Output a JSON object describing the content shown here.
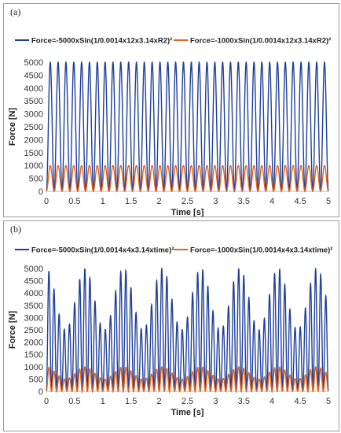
{
  "chart_data": [
    {
      "type": "line",
      "panel_label": "(a)",
      "xlabel": "Time [s]",
      "ylabel": "Force [N]",
      "xlim": [
        0,
        5
      ],
      "ylim": [
        0,
        5000
      ],
      "xticks": [
        "0",
        "0.5",
        "1",
        "1.5",
        "2",
        "2.5",
        "3",
        "3.5",
        "4",
        "4.5",
        "5"
      ],
      "yticks": [
        "0",
        "500",
        "1000",
        "1500",
        "2000",
        "2500",
        "3000",
        "3500",
        "4000",
        "4500",
        "5000"
      ],
      "grid": false,
      "legend_position": "top",
      "series": [
        {
          "name": "Force=-5000xSin(1/0.0014x12x3.14xR2)²",
          "color": "#1f3f99",
          "amplitude": 5000,
          "cycles": 36,
          "min_mod": 0.0
        },
        {
          "name": "Force=-1000xSin(1/0.0014x12x3.14xR2)²",
          "color": "#e0651f",
          "amplitude": 1000,
          "cycles": 36,
          "min_mod": 0.0
        }
      ]
    },
    {
      "type": "line",
      "panel_label": "(b)",
      "xlabel": "Time [s]",
      "ylabel": "Force [N]",
      "xlim": [
        0,
        5
      ],
      "ylim": [
        0,
        5000
      ],
      "xticks": [
        "0",
        "0.5",
        "1",
        "1.5",
        "2",
        "2.5",
        "3",
        "3.5",
        "4",
        "4.5",
        "5"
      ],
      "yticks": [
        "0",
        "500",
        "1000",
        "1500",
        "2000",
        "2500",
        "3000",
        "3500",
        "4000",
        "4500",
        "5000"
      ],
      "grid": false,
      "legend_position": "top",
      "series": [
        {
          "name": "Force=-5000xSin(1/0.0014x4x3.14xtime)²",
          "color": "#1f3f99",
          "amplitude": 5000,
          "cycles": 55,
          "min_mod": 0.5
        },
        {
          "name": "Force=-1000xSin(1/0.0014x4x3.14xtime)²",
          "color": "#e0651f",
          "amplitude": 1000,
          "cycles": 55,
          "min_mod": 0.5
        }
      ]
    }
  ]
}
